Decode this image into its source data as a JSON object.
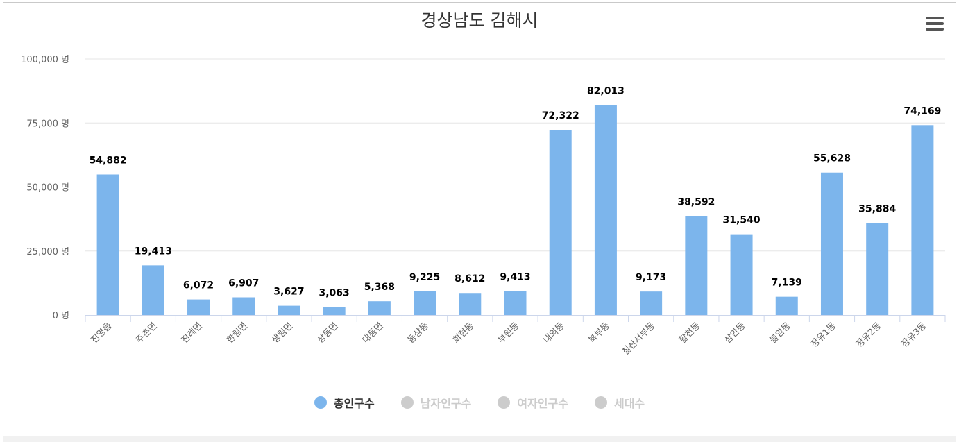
{
  "title": "경상남도 김해시",
  "menu_icon": "hamburger-menu-icon",
  "chart_data": {
    "type": "bar",
    "title": "경상남도 김해시",
    "categories": [
      "진영읍",
      "주촌면",
      "진례면",
      "한림면",
      "생림면",
      "상동면",
      "대동면",
      "동상동",
      "회현동",
      "부원동",
      "내외동",
      "북부동",
      "칠산서부동",
      "활천동",
      "삼안동",
      "불암동",
      "장유1동",
      "장유2동",
      "장유3동"
    ],
    "series": [
      {
        "name": "총인구수",
        "values": [
          54882,
          19413,
          6072,
          6907,
          3627,
          3063,
          5368,
          9225,
          8612,
          9413,
          72322,
          82013,
          9173,
          38592,
          31540,
          7139,
          55628,
          35884,
          74169
        ]
      }
    ],
    "value_labels": [
      "54,882",
      "19,413",
      "6,072",
      "6,907",
      "3,627",
      "3,063",
      "5,368",
      "9,225",
      "8,612",
      "9,413",
      "72,322",
      "82,013",
      "9,173",
      "38,592",
      "31,540",
      "7,139",
      "55,628",
      "35,884",
      "74,169"
    ],
    "y_ticks": [
      0,
      25000,
      50000,
      75000,
      100000
    ],
    "y_tick_labels": [
      "0 명",
      "25,000 명",
      "50,000 명",
      "75,000 명",
      "100,000 명"
    ],
    "ylim": [
      0,
      100000
    ],
    "grid": true,
    "legend_position": "bottom-center",
    "bar_color": "#7cb5ec"
  },
  "legend": [
    {
      "label": "총인구수",
      "color": "#7cb5ec",
      "text_color": "#333333",
      "active": true
    },
    {
      "label": "남자인구수",
      "color": "#cccccc",
      "text_color": "#cccccc",
      "active": false
    },
    {
      "label": "여자인구수",
      "color": "#cccccc",
      "text_color": "#cccccc",
      "active": false
    },
    {
      "label": "세대수",
      "color": "#cccccc",
      "text_color": "#cccccc",
      "active": false
    }
  ]
}
